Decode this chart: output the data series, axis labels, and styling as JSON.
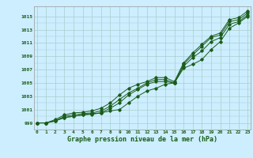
{
  "x_ticks": [
    0,
    1,
    2,
    3,
    4,
    5,
    6,
    7,
    8,
    9,
    10,
    11,
    12,
    13,
    14,
    15,
    16,
    17,
    18,
    19,
    20,
    21,
    22,
    23
  ],
  "ylim": [
    998.0,
    1016.5
  ],
  "xlim": [
    -0.3,
    23.3
  ],
  "yticks": [
    999,
    1001,
    1003,
    1005,
    1007,
    1009,
    1011,
    1013,
    1015
  ],
  "xlabel": "Graphe pression niveau de la mer (hPa)",
  "bg_color": "#cceeff",
  "line_color": "#1a5c1a",
  "grid_color": "#aacccc",
  "line1": [
    999.0,
    999.0,
    999.3,
    999.8,
    1000.0,
    1000.2,
    1000.4,
    1000.5,
    1000.8,
    1001.0,
    1002.0,
    1003.0,
    1003.8,
    1004.2,
    1004.8,
    1005.0,
    1007.2,
    1007.8,
    1008.5,
    1010.0,
    1011.2,
    1013.2,
    1014.0,
    1015.0
  ],
  "line2": [
    999.0,
    999.0,
    999.3,
    999.8,
    1000.0,
    1000.2,
    1000.3,
    1000.5,
    1001.2,
    1002.0,
    1003.2,
    1004.0,
    1004.8,
    1005.2,
    1005.2,
    1005.0,
    1007.5,
    1008.8,
    1009.8,
    1011.2,
    1011.8,
    1013.8,
    1014.2,
    1015.2
  ],
  "line3": [
    999.0,
    999.0,
    999.3,
    1000.0,
    1000.2,
    1000.4,
    1000.5,
    1000.8,
    1001.5,
    1002.5,
    1003.5,
    1004.2,
    1005.0,
    1005.5,
    1005.5,
    1005.0,
    1007.8,
    1009.2,
    1010.5,
    1011.8,
    1012.2,
    1014.2,
    1014.5,
    1015.5
  ],
  "line4": [
    999.0,
    999.0,
    999.5,
    1000.2,
    1000.5,
    1000.6,
    1000.8,
    1001.2,
    1002.0,
    1003.2,
    1004.2,
    1004.8,
    1005.2,
    1005.8,
    1005.8,
    1005.2,
    1008.0,
    1009.5,
    1010.8,
    1012.0,
    1012.5,
    1014.5,
    1014.8,
    1015.8
  ]
}
